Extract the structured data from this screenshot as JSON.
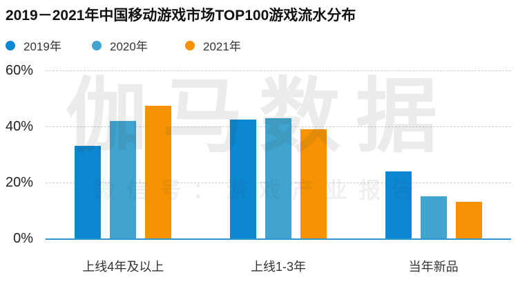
{
  "title": "2019－2021年中国移动游戏市场TOP100游戏流水分布",
  "legend": {
    "items": [
      {
        "label": "2019年",
        "color": "#0c87d2"
      },
      {
        "label": "2020年",
        "color": "#41a4cf"
      },
      {
        "label": "2021年",
        "color": "#f79303"
      }
    ]
  },
  "watermark": {
    "main": "伽马数据",
    "sub": "微信号：游戏产业报告"
  },
  "chart_data": {
    "type": "bar",
    "title": "2019－2021年中国移动游戏市场TOP100游戏流水分布",
    "categories": [
      "上线4年及以上",
      "上线1-3年",
      "当年新品"
    ],
    "series": [
      {
        "name": "2019年",
        "color": "#0c87d2",
        "values": [
          33,
          42.5,
          24
        ]
      },
      {
        "name": "2020年",
        "color": "#41a4cf",
        "values": [
          42,
          43,
          15
        ]
      },
      {
        "name": "2021年",
        "color": "#f79303",
        "values": [
          47.5,
          39,
          13
        ]
      }
    ],
    "xlabel": "",
    "ylabel": "",
    "ylim": [
      0,
      60
    ],
    "yticks": [
      {
        "label": "0%",
        "value": 0
      },
      {
        "label": "20%",
        "value": 20
      },
      {
        "label": "40%",
        "value": 40
      },
      {
        "label": "60%",
        "value": 60
      }
    ],
    "grid": "horizontal-dashed",
    "legend_position": "top-left",
    "colors": {
      "axis_line": "#2e96d2",
      "gridline": "#cccccc",
      "text": "#333333"
    }
  }
}
